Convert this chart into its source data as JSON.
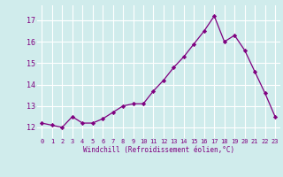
{
  "x": [
    0,
    1,
    2,
    3,
    4,
    5,
    6,
    7,
    8,
    9,
    10,
    11,
    12,
    13,
    14,
    15,
    16,
    17,
    18,
    19,
    20,
    21,
    22,
    23
  ],
  "y": [
    12.2,
    12.1,
    12.0,
    12.5,
    12.2,
    12.2,
    12.4,
    12.7,
    13.0,
    13.1,
    13.1,
    13.7,
    14.2,
    14.8,
    15.3,
    15.9,
    16.5,
    17.2,
    16.0,
    16.3,
    15.6,
    14.6,
    13.6,
    12.5
  ],
  "line_color": "#800080",
  "marker": "D",
  "marker_size": 2.2,
  "bg_color": "#d0ecec",
  "grid_color": "#ffffff",
  "xlabel": "Windchill (Refroidissement éolien,°C)",
  "xlabel_color": "#800080",
  "tick_color": "#800080",
  "ylim": [
    11.5,
    17.7
  ],
  "xlim": [
    -0.5,
    23.5
  ],
  "yticks": [
    12,
    13,
    14,
    15,
    16,
    17
  ],
  "xticks": [
    0,
    1,
    2,
    3,
    4,
    5,
    6,
    7,
    8,
    9,
    10,
    11,
    12,
    13,
    14,
    15,
    16,
    17,
    18,
    19,
    20,
    21,
    22,
    23
  ]
}
